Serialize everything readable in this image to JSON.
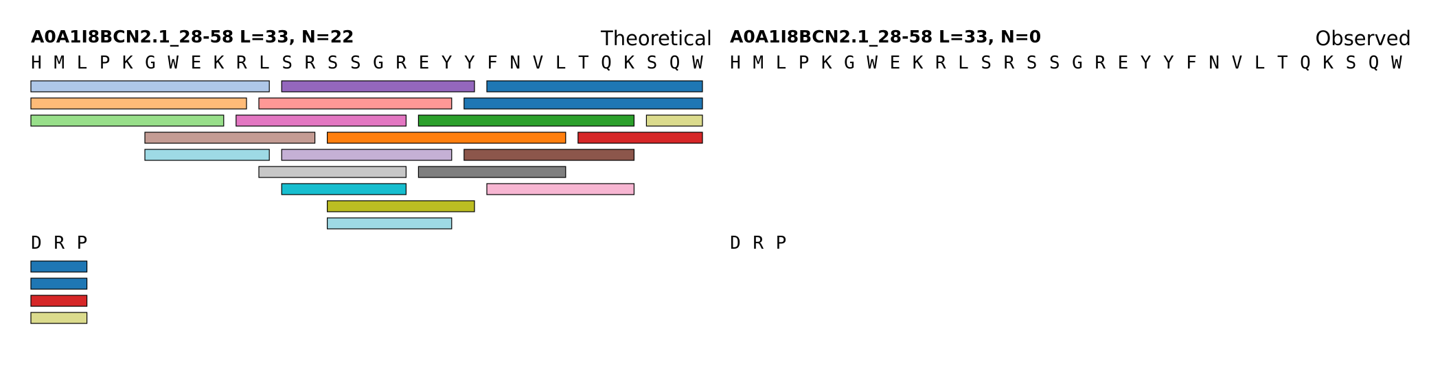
{
  "panels": [
    {
      "title": "A0A1I8BCN2.1_28-58  L=33, N=22",
      "label": "Theoretical",
      "rows": [
        {
          "residues": [
            "H",
            "M",
            "L",
            "P",
            "K",
            "G",
            "W",
            "E",
            "K",
            "R",
            "L",
            "S",
            "R",
            "S",
            "S",
            "G",
            "R",
            "E",
            "Y",
            "Y",
            "F",
            "N",
            "V",
            "L",
            "T",
            "Q",
            "K",
            "S",
            "Q",
            "W"
          ],
          "peptides": [
            {
              "start": 0,
              "end": 10,
              "track": 0,
              "color": "#aec7e8"
            },
            {
              "start": 11,
              "end": 19,
              "track": 0,
              "color": "#9467bd"
            },
            {
              "start": 20,
              "end": 29,
              "track": 0,
              "color": "#1f77b4"
            },
            {
              "start": 0,
              "end": 9,
              "track": 1,
              "color": "#ffbb78"
            },
            {
              "start": 10,
              "end": 18,
              "track": 1,
              "color": "#ff9896"
            },
            {
              "start": 19,
              "end": 29,
              "track": 1,
              "color": "#1f77b4"
            },
            {
              "start": 0,
              "end": 8,
              "track": 2,
              "color": "#98df8a"
            },
            {
              "start": 9,
              "end": 16,
              "track": 2,
              "color": "#e377c2"
            },
            {
              "start": 17,
              "end": 26,
              "track": 2,
              "color": "#2ca02c"
            },
            {
              "start": 27,
              "end": 29,
              "track": 2,
              "color": "#dbdb8d"
            },
            {
              "start": 5,
              "end": 12,
              "track": 3,
              "color": "#c49c94"
            },
            {
              "start": 13,
              "end": 23,
              "track": 3,
              "color": "#ff7f0e"
            },
            {
              "start": 24,
              "end": 29,
              "track": 3,
              "color": "#d62728"
            },
            {
              "start": 5,
              "end": 10,
              "track": 4,
              "color": "#9edae5"
            },
            {
              "start": 11,
              "end": 18,
              "track": 4,
              "color": "#c5b0d5"
            },
            {
              "start": 19,
              "end": 26,
              "track": 4,
              "color": "#8c564b"
            },
            {
              "start": 10,
              "end": 16,
              "track": 5,
              "color": "#c7c7c7"
            },
            {
              "start": 17,
              "end": 23,
              "track": 5,
              "color": "#7f7f7f"
            },
            {
              "start": 11,
              "end": 16,
              "track": 6,
              "color": "#17becf"
            },
            {
              "start": 20,
              "end": 26,
              "track": 6,
              "color": "#f7b6d2"
            },
            {
              "start": 13,
              "end": 19,
              "track": 7,
              "color": "#bcbd22"
            },
            {
              "start": 13,
              "end": 18,
              "track": 8,
              "color": "#9edae5"
            }
          ]
        },
        {
          "residues": [
            "D",
            "R",
            "P"
          ],
          "peptides": [
            {
              "start": 0,
              "end": 2,
              "track": 0,
              "color": "#1f77b4"
            },
            {
              "start": 0,
              "end": 2,
              "track": 1,
              "color": "#1f77b4"
            },
            {
              "start": 0,
              "end": 2,
              "track": 2,
              "color": "#d62728"
            },
            {
              "start": 0,
              "end": 2,
              "track": 3,
              "color": "#dbdb8d"
            }
          ]
        }
      ]
    },
    {
      "title": "A0A1I8BCN2.1_28-58  L=33, N=0",
      "label": "Observed",
      "rows": [
        {
          "residues": [
            "H",
            "M",
            "L",
            "P",
            "K",
            "G",
            "W",
            "E",
            "K",
            "R",
            "L",
            "S",
            "R",
            "S",
            "S",
            "G",
            "R",
            "E",
            "Y",
            "Y",
            "F",
            "N",
            "V",
            "L",
            "T",
            "Q",
            "K",
            "S",
            "Q",
            "W"
          ],
          "peptides": []
        },
        {
          "residues": [
            "D",
            "R",
            "P"
          ],
          "peptides": []
        }
      ]
    }
  ]
}
